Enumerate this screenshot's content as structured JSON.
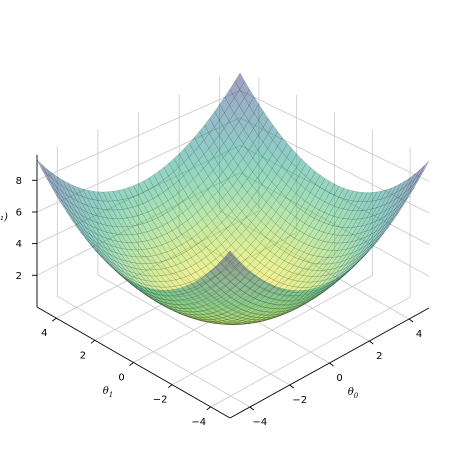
{
  "chart_data": {
    "type": "surface",
    "function": "theta0^2/4 + theta1^2/4 - 0.5 + 0.5*cos(...)",
    "x": {
      "label": "θ₀",
      "label_text": "θ",
      "label_sub": "0",
      "ticks": [
        -4,
        -2,
        0,
        2,
        4
      ],
      "range": [
        -5,
        5
      ]
    },
    "y": {
      "label": "θ₁",
      "label_text": "θ",
      "label_sub": "1",
      "ticks": [
        -4,
        -2,
        0,
        2,
        4
      ],
      "range": [
        -5,
        5
      ]
    },
    "z": {
      "label_partial": "₁)",
      "ticks": [
        2,
        4,
        6,
        8
      ],
      "range": [
        0,
        9
      ]
    },
    "grid": true,
    "colormap": "viridis",
    "alpha": 0.5
  }
}
